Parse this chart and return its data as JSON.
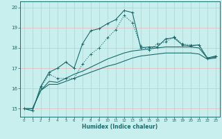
{
  "xlabel": "Humidex (Indice chaleur)",
  "bg_color": "#c8eeee",
  "line_color": "#1a6b6b",
  "grid_color": "#e8b8b8",
  "xlim": [
    -0.5,
    23.5
  ],
  "ylim": [
    14.6,
    20.3
  ],
  "yticks": [
    15,
    16,
    17,
    18,
    19,
    20
  ],
  "xticks": [
    0,
    1,
    2,
    3,
    4,
    5,
    6,
    7,
    8,
    9,
    10,
    11,
    12,
    13,
    14,
    15,
    16,
    17,
    18,
    19,
    20,
    21,
    22,
    23
  ],
  "series1_x": [
    0,
    1,
    2,
    3,
    4,
    5,
    6,
    7,
    8,
    9,
    10,
    11,
    12,
    13,
    14,
    15,
    16,
    17,
    18,
    19,
    20,
    21,
    22,
    23
  ],
  "series1_y": [
    15.0,
    14.9,
    16.1,
    16.8,
    17.0,
    17.3,
    17.0,
    18.2,
    18.85,
    18.95,
    19.2,
    19.4,
    19.85,
    19.75,
    18.0,
    18.05,
    18.05,
    18.45,
    18.5,
    18.15,
    18.1,
    18.15,
    17.5,
    17.6
  ],
  "series2_x": [
    0,
    1,
    2,
    3,
    4,
    5,
    6,
    7,
    8,
    9,
    10,
    11,
    12,
    13,
    14,
    15,
    16,
    17,
    18,
    19,
    20,
    21,
    22,
    23
  ],
  "series2_y": [
    15.0,
    14.9,
    16.05,
    16.7,
    16.5,
    16.5,
    16.5,
    17.2,
    17.7,
    18.0,
    18.5,
    18.9,
    19.6,
    19.25,
    18.1,
    17.9,
    18.2,
    18.3,
    18.55,
    18.2,
    18.15,
    18.15,
    17.5,
    17.6
  ],
  "series3_x": [
    0,
    1,
    2,
    3,
    4,
    5,
    6,
    7,
    8,
    9,
    10,
    11,
    12,
    13,
    14,
    15,
    16,
    17,
    18,
    19,
    20,
    21,
    22,
    23
  ],
  "series3_y": [
    15.0,
    15.0,
    15.9,
    16.35,
    16.3,
    16.5,
    16.7,
    16.85,
    17.05,
    17.25,
    17.45,
    17.6,
    17.75,
    17.85,
    17.9,
    17.95,
    18.0,
    18.05,
    18.05,
    18.05,
    18.05,
    18.0,
    17.5,
    17.55
  ],
  "series4_x": [
    0,
    1,
    2,
    3,
    4,
    5,
    6,
    7,
    8,
    9,
    10,
    11,
    12,
    13,
    14,
    15,
    16,
    17,
    18,
    19,
    20,
    21,
    22,
    23
  ],
  "series4_y": [
    15.0,
    15.0,
    15.9,
    16.2,
    16.2,
    16.35,
    16.5,
    16.65,
    16.8,
    16.95,
    17.1,
    17.2,
    17.35,
    17.5,
    17.6,
    17.65,
    17.7,
    17.75,
    17.75,
    17.75,
    17.75,
    17.7,
    17.45,
    17.5
  ]
}
